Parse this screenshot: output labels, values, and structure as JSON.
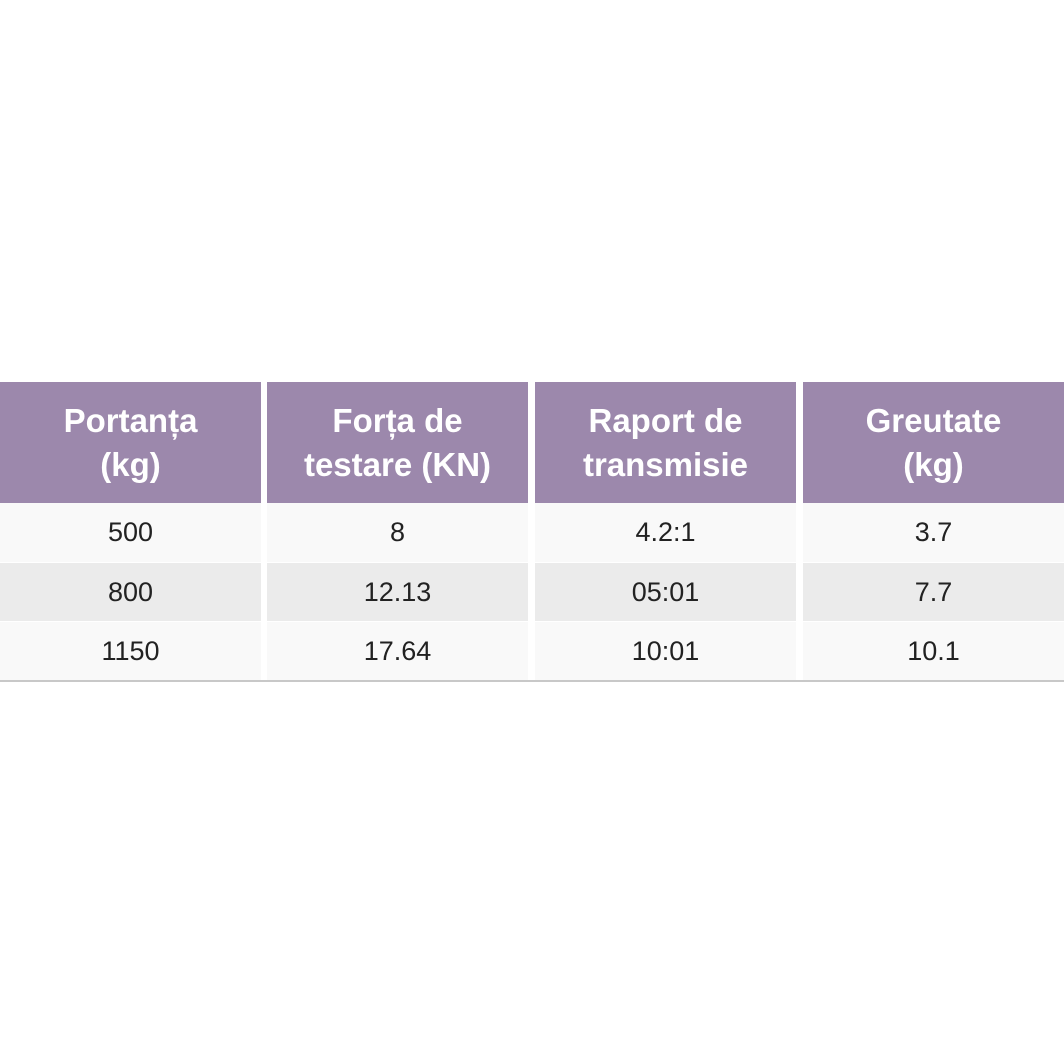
{
  "table": {
    "header": [
      [
        "Portanța",
        "(kg)"
      ],
      [
        "Forța de",
        "testare (KN)"
      ],
      [
        "Raport de",
        "transmisie"
      ],
      [
        "Greutate",
        "(kg)"
      ]
    ],
    "rows": [
      [
        "500",
        "8",
        "4.2:1",
        "3.7"
      ],
      [
        "800",
        "12.13",
        "05:01",
        "7.7"
      ],
      [
        "1150",
        "17.64",
        "10:01",
        "10.1"
      ]
    ]
  }
}
